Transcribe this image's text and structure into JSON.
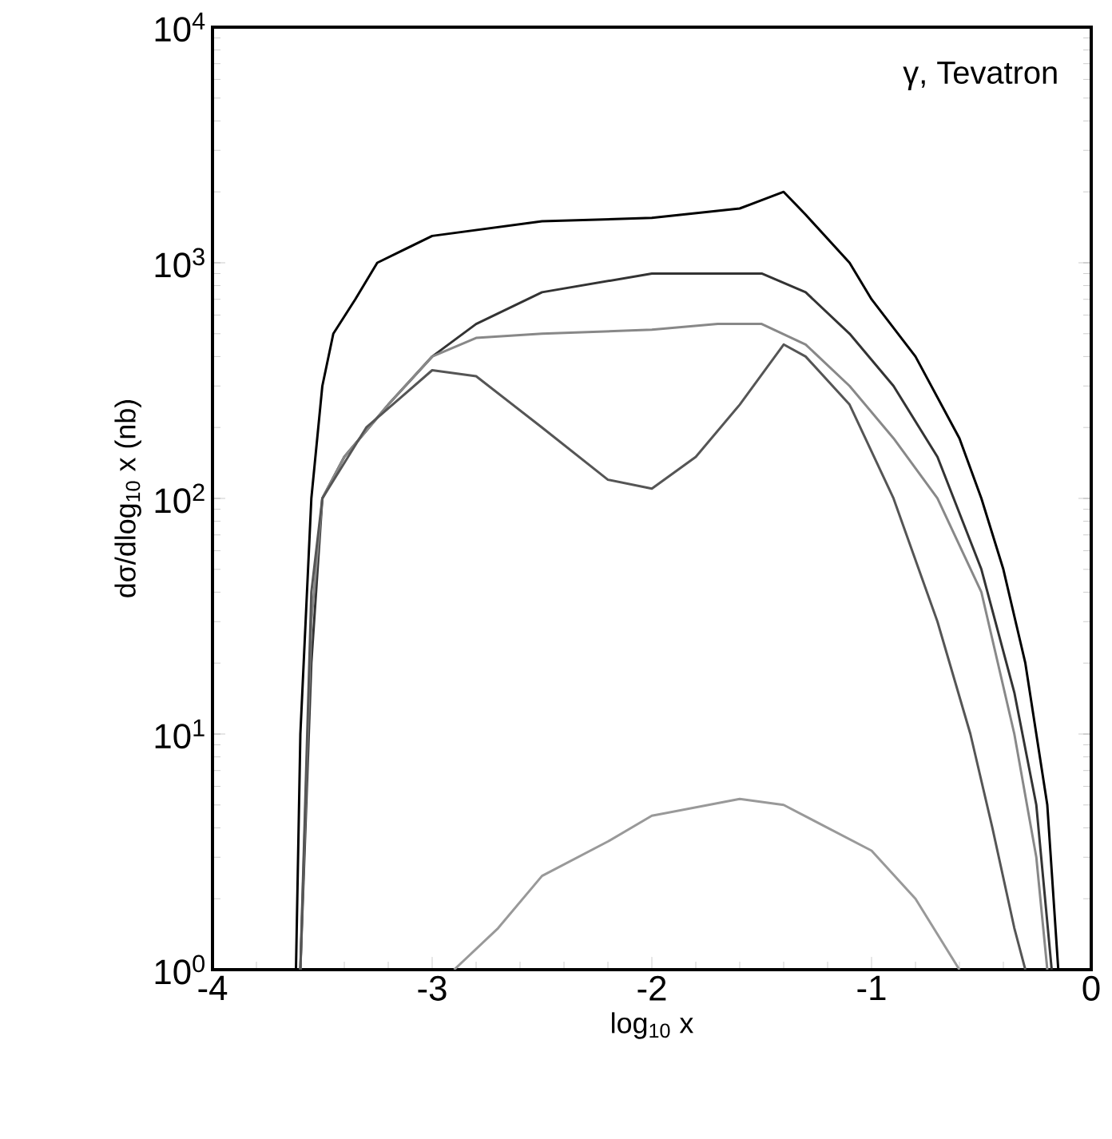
{
  "chart_data": {
    "type": "line",
    "xlabel": "log$_{10}$ x",
    "ylabel": "dσ/dlog$_{10}$ x (nb)",
    "annotations": [
      "γ, Tevatron"
    ],
    "log": "y",
    "xlim": [
      -4,
      0
    ],
    "ylim": [
      1,
      10000
    ],
    "xticks": [
      -4,
      -3,
      -2,
      -1,
      0
    ],
    "yticks": [
      {
        "value": 1,
        "label": "10$^{0}$"
      },
      {
        "value": 10,
        "label": "10$^{1}$"
      },
      {
        "value": 100,
        "label": "10$^{2}$"
      },
      {
        "value": 1000,
        "label": "10$^{3}$"
      },
      {
        "value": 10000,
        "label": "10$^{4}$"
      }
    ],
    "series": [
      {
        "color": "#000000",
        "x": [
          -3.62,
          -3.6,
          -3.55,
          -3.5,
          -3.45,
          -3.35,
          -3.25,
          -3.0,
          -2.5,
          -2.0,
          -1.6,
          -1.4,
          -1.3,
          -1.1,
          -1.0,
          -0.8,
          -0.6,
          -0.5,
          -0.4,
          -0.3,
          -0.2,
          -0.15
        ],
        "values": [
          1,
          10,
          100,
          300,
          500,
          700,
          1000,
          1300,
          1500,
          1550,
          1700,
          2000,
          1600,
          1000,
          700,
          400,
          180,
          100,
          50,
          20,
          5,
          1
        ]
      },
      {
        "color": "#333333",
        "x": [
          -3.6,
          -3.55,
          -3.5,
          -3.4,
          -3.2,
          -3.0,
          -2.8,
          -2.5,
          -2.0,
          -1.5,
          -1.3,
          -1.1,
          -0.9,
          -0.7,
          -0.5,
          -0.35,
          -0.25,
          -0.18
        ],
        "values": [
          1,
          20,
          100,
          150,
          250,
          400,
          550,
          750,
          900,
          900,
          750,
          500,
          300,
          150,
          50,
          15,
          5,
          1
        ]
      },
      {
        "color": "#888888",
        "x": [
          -3.6,
          -3.55,
          -3.5,
          -3.4,
          -3.2,
          -3.0,
          -2.8,
          -2.5,
          -2.0,
          -1.7,
          -1.5,
          -1.3,
          -1.1,
          -0.9,
          -0.7,
          -0.5,
          -0.35,
          -0.25,
          -0.2
        ],
        "values": [
          1,
          30,
          100,
          150,
          250,
          400,
          480,
          500,
          520,
          550,
          550,
          450,
          300,
          180,
          100,
          40,
          10,
          3,
          1
        ]
      },
      {
        "color": "#555555",
        "x": [
          -3.6,
          -3.55,
          -3.5,
          -3.3,
          -3.0,
          -2.8,
          -2.5,
          -2.2,
          -2.0,
          -1.8,
          -1.6,
          -1.4,
          -1.3,
          -1.1,
          -0.9,
          -0.7,
          -0.55,
          -0.45,
          -0.35,
          -0.3
        ],
        "values": [
          1,
          40,
          100,
          200,
          350,
          330,
          200,
          120,
          110,
          150,
          250,
          450,
          400,
          250,
          100,
          30,
          10,
          4,
          1.5,
          1
        ]
      },
      {
        "color": "#999999",
        "x": [
          -2.9,
          -2.7,
          -2.5,
          -2.2,
          -2.0,
          -1.6,
          -1.4,
          -1.0,
          -0.8,
          -0.6
        ],
        "values": [
          1,
          1.5,
          2.5,
          3.5,
          4.5,
          5.3,
          5,
          3.2,
          2,
          1
        ]
      }
    ]
  }
}
